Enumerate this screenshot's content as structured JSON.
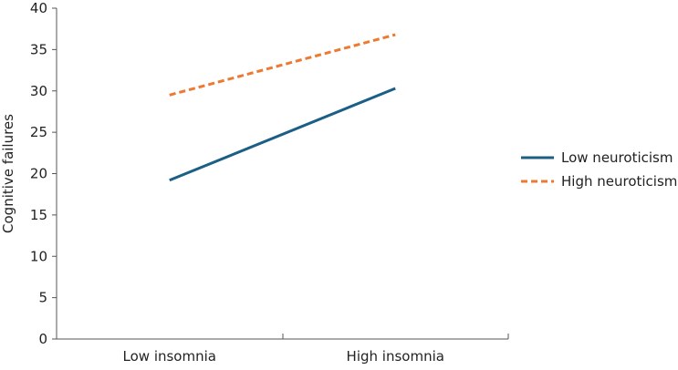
{
  "chart_data": {
    "type": "line",
    "title": "",
    "xlabel": "",
    "ylabel": "Cognitive failures",
    "categories": [
      "Low insomnia",
      "High insomnia"
    ],
    "ylim": [
      0,
      40
    ],
    "yticks": [
      0,
      5,
      10,
      15,
      20,
      25,
      30,
      35,
      40
    ],
    "grid": false,
    "legend_position": "right",
    "series": [
      {
        "name": "Low neuroticism",
        "values": [
          19.2,
          30.3
        ],
        "color": "#1b5f86",
        "line_style": "solid"
      },
      {
        "name": "High neuroticism",
        "values": [
          29.5,
          36.8
        ],
        "color": "#ec7a33",
        "line_style": "dashed"
      }
    ]
  },
  "colors": {
    "axis": "#555555",
    "text": "#222222"
  }
}
